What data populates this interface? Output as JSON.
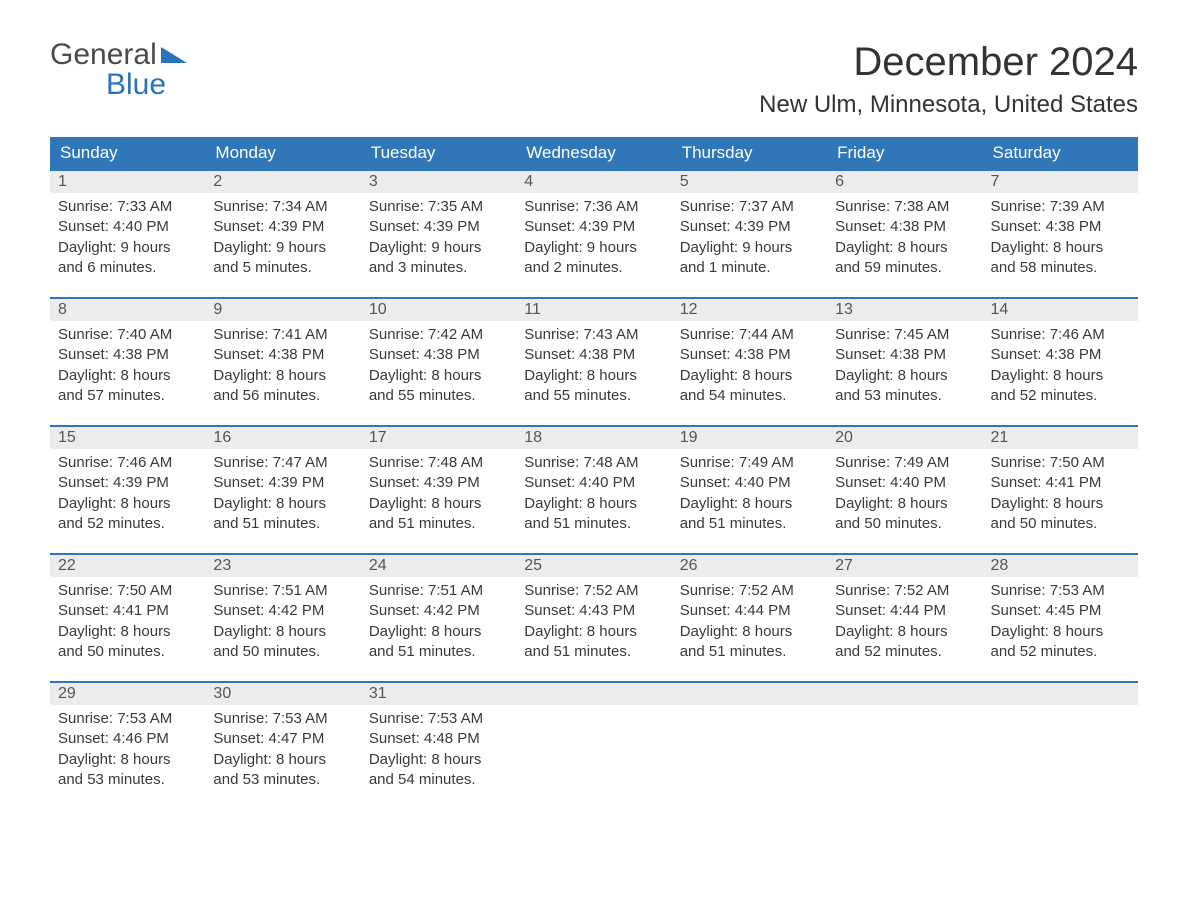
{
  "logo": {
    "word1": "General",
    "word2": "Blue"
  },
  "title": "December 2024",
  "location": "New Ulm, Minnesota, United States",
  "colors": {
    "header_bg": "#2f77b9",
    "header_text": "#ffffff",
    "daynum_bg": "#ececec",
    "border": "#2f77b9",
    "text": "#3a3a3a"
  },
  "weekdays": [
    "Sunday",
    "Monday",
    "Tuesday",
    "Wednesday",
    "Thursday",
    "Friday",
    "Saturday"
  ],
  "weeks": [
    [
      {
        "n": "1",
        "sunrise": "7:33 AM",
        "sunset": "4:40 PM",
        "dl1": "9 hours",
        "dl2": "and 6 minutes."
      },
      {
        "n": "2",
        "sunrise": "7:34 AM",
        "sunset": "4:39 PM",
        "dl1": "9 hours",
        "dl2": "and 5 minutes."
      },
      {
        "n": "3",
        "sunrise": "7:35 AM",
        "sunset": "4:39 PM",
        "dl1": "9 hours",
        "dl2": "and 3 minutes."
      },
      {
        "n": "4",
        "sunrise": "7:36 AM",
        "sunset": "4:39 PM",
        "dl1": "9 hours",
        "dl2": "and 2 minutes."
      },
      {
        "n": "5",
        "sunrise": "7:37 AM",
        "sunset": "4:39 PM",
        "dl1": "9 hours",
        "dl2": "and 1 minute."
      },
      {
        "n": "6",
        "sunrise": "7:38 AM",
        "sunset": "4:38 PM",
        "dl1": "8 hours",
        "dl2": "and 59 minutes."
      },
      {
        "n": "7",
        "sunrise": "7:39 AM",
        "sunset": "4:38 PM",
        "dl1": "8 hours",
        "dl2": "and 58 minutes."
      }
    ],
    [
      {
        "n": "8",
        "sunrise": "7:40 AM",
        "sunset": "4:38 PM",
        "dl1": "8 hours",
        "dl2": "and 57 minutes."
      },
      {
        "n": "9",
        "sunrise": "7:41 AM",
        "sunset": "4:38 PM",
        "dl1": "8 hours",
        "dl2": "and 56 minutes."
      },
      {
        "n": "10",
        "sunrise": "7:42 AM",
        "sunset": "4:38 PM",
        "dl1": "8 hours",
        "dl2": "and 55 minutes."
      },
      {
        "n": "11",
        "sunrise": "7:43 AM",
        "sunset": "4:38 PM",
        "dl1": "8 hours",
        "dl2": "and 55 minutes."
      },
      {
        "n": "12",
        "sunrise": "7:44 AM",
        "sunset": "4:38 PM",
        "dl1": "8 hours",
        "dl2": "and 54 minutes."
      },
      {
        "n": "13",
        "sunrise": "7:45 AM",
        "sunset": "4:38 PM",
        "dl1": "8 hours",
        "dl2": "and 53 minutes."
      },
      {
        "n": "14",
        "sunrise": "7:46 AM",
        "sunset": "4:38 PM",
        "dl1": "8 hours",
        "dl2": "and 52 minutes."
      }
    ],
    [
      {
        "n": "15",
        "sunrise": "7:46 AM",
        "sunset": "4:39 PM",
        "dl1": "8 hours",
        "dl2": "and 52 minutes."
      },
      {
        "n": "16",
        "sunrise": "7:47 AM",
        "sunset": "4:39 PM",
        "dl1": "8 hours",
        "dl2": "and 51 minutes."
      },
      {
        "n": "17",
        "sunrise": "7:48 AM",
        "sunset": "4:39 PM",
        "dl1": "8 hours",
        "dl2": "and 51 minutes."
      },
      {
        "n": "18",
        "sunrise": "7:48 AM",
        "sunset": "4:40 PM",
        "dl1": "8 hours",
        "dl2": "and 51 minutes."
      },
      {
        "n": "19",
        "sunrise": "7:49 AM",
        "sunset": "4:40 PM",
        "dl1": "8 hours",
        "dl2": "and 51 minutes."
      },
      {
        "n": "20",
        "sunrise": "7:49 AM",
        "sunset": "4:40 PM",
        "dl1": "8 hours",
        "dl2": "and 50 minutes."
      },
      {
        "n": "21",
        "sunrise": "7:50 AM",
        "sunset": "4:41 PM",
        "dl1": "8 hours",
        "dl2": "and 50 minutes."
      }
    ],
    [
      {
        "n": "22",
        "sunrise": "7:50 AM",
        "sunset": "4:41 PM",
        "dl1": "8 hours",
        "dl2": "and 50 minutes."
      },
      {
        "n": "23",
        "sunrise": "7:51 AM",
        "sunset": "4:42 PM",
        "dl1": "8 hours",
        "dl2": "and 50 minutes."
      },
      {
        "n": "24",
        "sunrise": "7:51 AM",
        "sunset": "4:42 PM",
        "dl1": "8 hours",
        "dl2": "and 51 minutes."
      },
      {
        "n": "25",
        "sunrise": "7:52 AM",
        "sunset": "4:43 PM",
        "dl1": "8 hours",
        "dl2": "and 51 minutes."
      },
      {
        "n": "26",
        "sunrise": "7:52 AM",
        "sunset": "4:44 PM",
        "dl1": "8 hours",
        "dl2": "and 51 minutes."
      },
      {
        "n": "27",
        "sunrise": "7:52 AM",
        "sunset": "4:44 PM",
        "dl1": "8 hours",
        "dl2": "and 52 minutes."
      },
      {
        "n": "28",
        "sunrise": "7:53 AM",
        "sunset": "4:45 PM",
        "dl1": "8 hours",
        "dl2": "and 52 minutes."
      }
    ],
    [
      {
        "n": "29",
        "sunrise": "7:53 AM",
        "sunset": "4:46 PM",
        "dl1": "8 hours",
        "dl2": "and 53 minutes."
      },
      {
        "n": "30",
        "sunrise": "7:53 AM",
        "sunset": "4:47 PM",
        "dl1": "8 hours",
        "dl2": "and 53 minutes."
      },
      {
        "n": "31",
        "sunrise": "7:53 AM",
        "sunset": "4:48 PM",
        "dl1": "8 hours",
        "dl2": "and 54 minutes."
      },
      null,
      null,
      null,
      null
    ]
  ],
  "labels": {
    "sunrise_prefix": "Sunrise: ",
    "sunset_prefix": "Sunset: ",
    "daylight_prefix": "Daylight: "
  }
}
